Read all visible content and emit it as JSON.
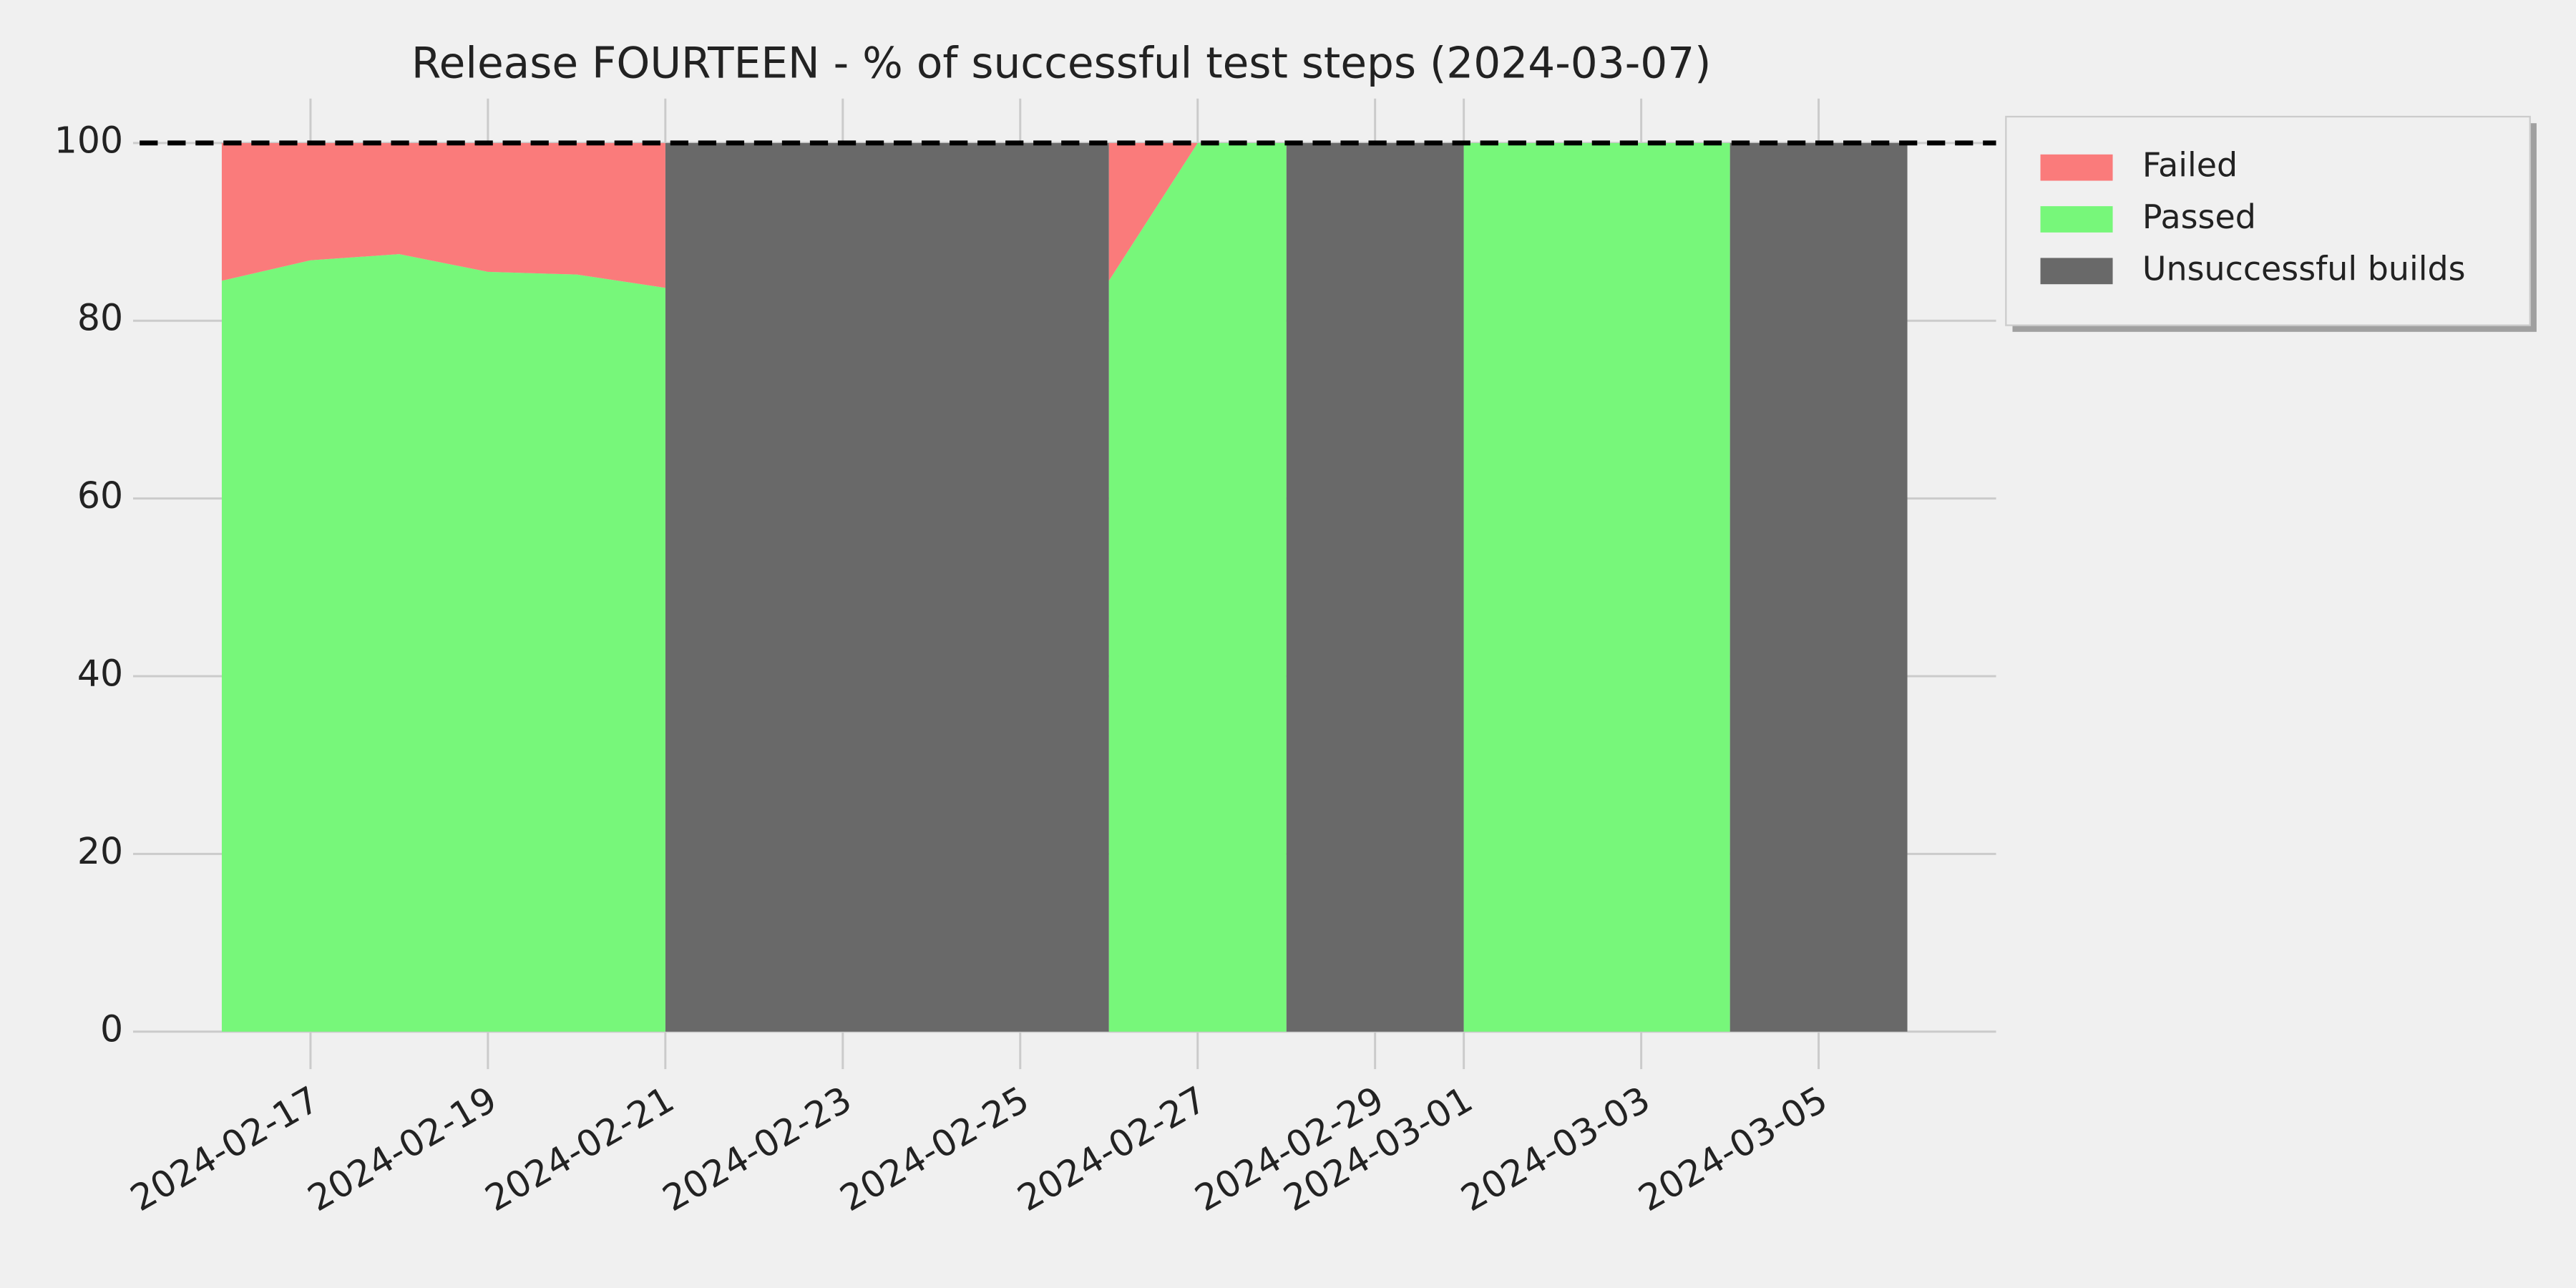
{
  "chart_data": {
    "type": "area",
    "title": "Release FOURTEEN - % of successful test steps (2024-03-07)",
    "x": [
      "2024-02-16",
      "2024-02-17",
      "2024-02-18",
      "2024-02-19",
      "2024-02-20",
      "2024-02-21",
      "2024-02-22",
      "2024-02-23",
      "2024-02-24",
      "2024-02-25",
      "2024-02-26",
      "2024-02-27",
      "2024-02-28",
      "2024-02-29",
      "2024-03-01",
      "2024-03-02",
      "2024-03-03",
      "2024-03-04",
      "2024-03-05",
      "2024-03-06"
    ],
    "series": [
      {
        "name": "Failed",
        "color": "#fa7b7b",
        "base_series": 1,
        "values": [
          15.5,
          13.2,
          12.5,
          14.5,
          14.8,
          16.3,
          null,
          null,
          null,
          null,
          15.5,
          0,
          0,
          null,
          0,
          0,
          0,
          0,
          null,
          null
        ]
      },
      {
        "name": "Passed",
        "color": "#77f77a",
        "values": [
          84.5,
          86.8,
          87.5,
          85.5,
          85.2,
          83.7,
          null,
          null,
          null,
          null,
          84.5,
          100,
          100,
          null,
          100,
          100,
          100,
          100,
          null,
          null
        ]
      },
      {
        "name": "Unsuccessful builds",
        "color": "#696969",
        "values": [
          null,
          null,
          null,
          null,
          null,
          100,
          100,
          100,
          100,
          100,
          100,
          null,
          100,
          100,
          100,
          null,
          null,
          100,
          100,
          100
        ]
      }
    ],
    "reference_line": 100,
    "xlim": [
      "2024-02-15",
      "2024-03-07"
    ],
    "xticks": [
      "2024-02-17",
      "2024-02-19",
      "2024-02-21",
      "2024-02-23",
      "2024-02-25",
      "2024-02-27",
      "2024-02-29",
      "2024-03-01",
      "2024-03-03",
      "2024-03-05"
    ],
    "ylim": [
      -2,
      105
    ],
    "yticks": [
      0,
      20,
      40,
      60,
      80,
      100
    ],
    "grid": true,
    "legend": "outside-upper-right"
  }
}
